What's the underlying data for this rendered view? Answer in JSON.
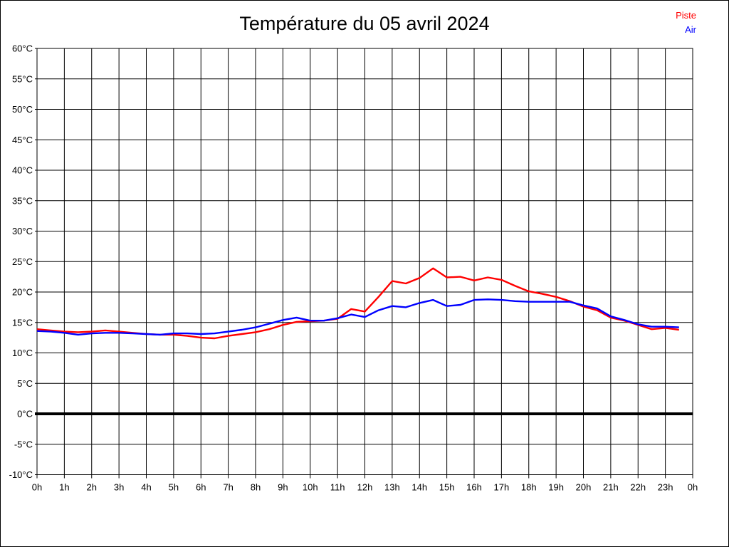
{
  "page": {
    "background_color": "#ffffff",
    "border_color": "#000000"
  },
  "header": {
    "title": "Température du 05 avril 2024"
  },
  "legend": {
    "position": "top-right",
    "items": [
      {
        "label": "Piste",
        "color": "#ff0000"
      },
      {
        "label": "Air",
        "color": "#0000ff"
      }
    ]
  },
  "chart_data": {
    "type": "line",
    "title": "Température du 05 avril 2024",
    "xlabel": "",
    "ylabel": "",
    "xlim": [
      0,
      24
    ],
    "ylim": [
      -10,
      60
    ],
    "y_tick_step": 5,
    "x_tick_step_hours": 1,
    "grid": true,
    "zero_line_bold": true,
    "grid_color": "#000000",
    "x_tick_labels": [
      "0h",
      "1h",
      "2h",
      "3h",
      "4h",
      "5h",
      "6h",
      "7h",
      "8h",
      "9h",
      "10h",
      "11h",
      "12h",
      "13h",
      "14h",
      "15h",
      "16h",
      "17h",
      "18h",
      "19h",
      "20h",
      "21h",
      "22h",
      "23h",
      "0h"
    ],
    "y_tick_labels": [
      "60°C",
      "55°C",
      "50°C",
      "45°C",
      "40°C",
      "35°C",
      "30°C",
      "25°C",
      "20°C",
      "15°C",
      "10°C",
      "5°C",
      "0°C",
      "-5°C",
      "-10°C"
    ],
    "x": [
      0,
      0.5,
      1,
      1.5,
      2,
      2.5,
      3,
      3.5,
      4,
      4.5,
      5,
      5.5,
      6,
      6.5,
      7,
      7.5,
      8,
      8.5,
      9,
      9.5,
      10,
      10.5,
      11,
      11.5,
      12,
      12.5,
      13,
      13.5,
      14,
      14.5,
      15,
      15.5,
      16,
      16.5,
      17,
      17.5,
      18,
      18.5,
      19,
      19.5,
      20,
      20.5,
      21,
      21.5,
      22,
      22.5,
      23,
      23.5
    ],
    "series": [
      {
        "name": "Piste",
        "color": "#ff0000",
        "values": [
          13.9,
          13.7,
          13.5,
          13.4,
          13.5,
          13.7,
          13.5,
          13.3,
          13.1,
          13.0,
          13.0,
          12.8,
          12.5,
          12.4,
          12.8,
          13.1,
          13.4,
          13.9,
          14.6,
          15.1,
          15.2,
          15.3,
          15.6,
          17.2,
          16.8,
          19.2,
          21.8,
          21.4,
          22.3,
          23.9,
          22.4,
          22.5,
          21.9,
          22.4,
          22.0,
          21.0,
          20.1,
          19.7,
          19.2,
          18.5,
          17.6,
          17.0,
          15.8,
          15.3,
          14.6,
          13.9,
          14.1,
          13.8
        ]
      },
      {
        "name": "Air",
        "color": "#0000ff",
        "values": [
          13.6,
          13.5,
          13.3,
          13.0,
          13.2,
          13.3,
          13.3,
          13.2,
          13.1,
          13.0,
          13.2,
          13.2,
          13.1,
          13.2,
          13.5,
          13.8,
          14.2,
          14.8,
          15.4,
          15.8,
          15.3,
          15.3,
          15.7,
          16.3,
          15.9,
          17.0,
          17.7,
          17.5,
          18.2,
          18.7,
          17.7,
          17.9,
          18.7,
          18.8,
          18.7,
          18.5,
          18.4,
          18.4,
          18.4,
          18.4,
          17.8,
          17.3,
          16.0,
          15.4,
          14.7,
          14.3,
          14.3,
          14.2
        ]
      }
    ]
  }
}
